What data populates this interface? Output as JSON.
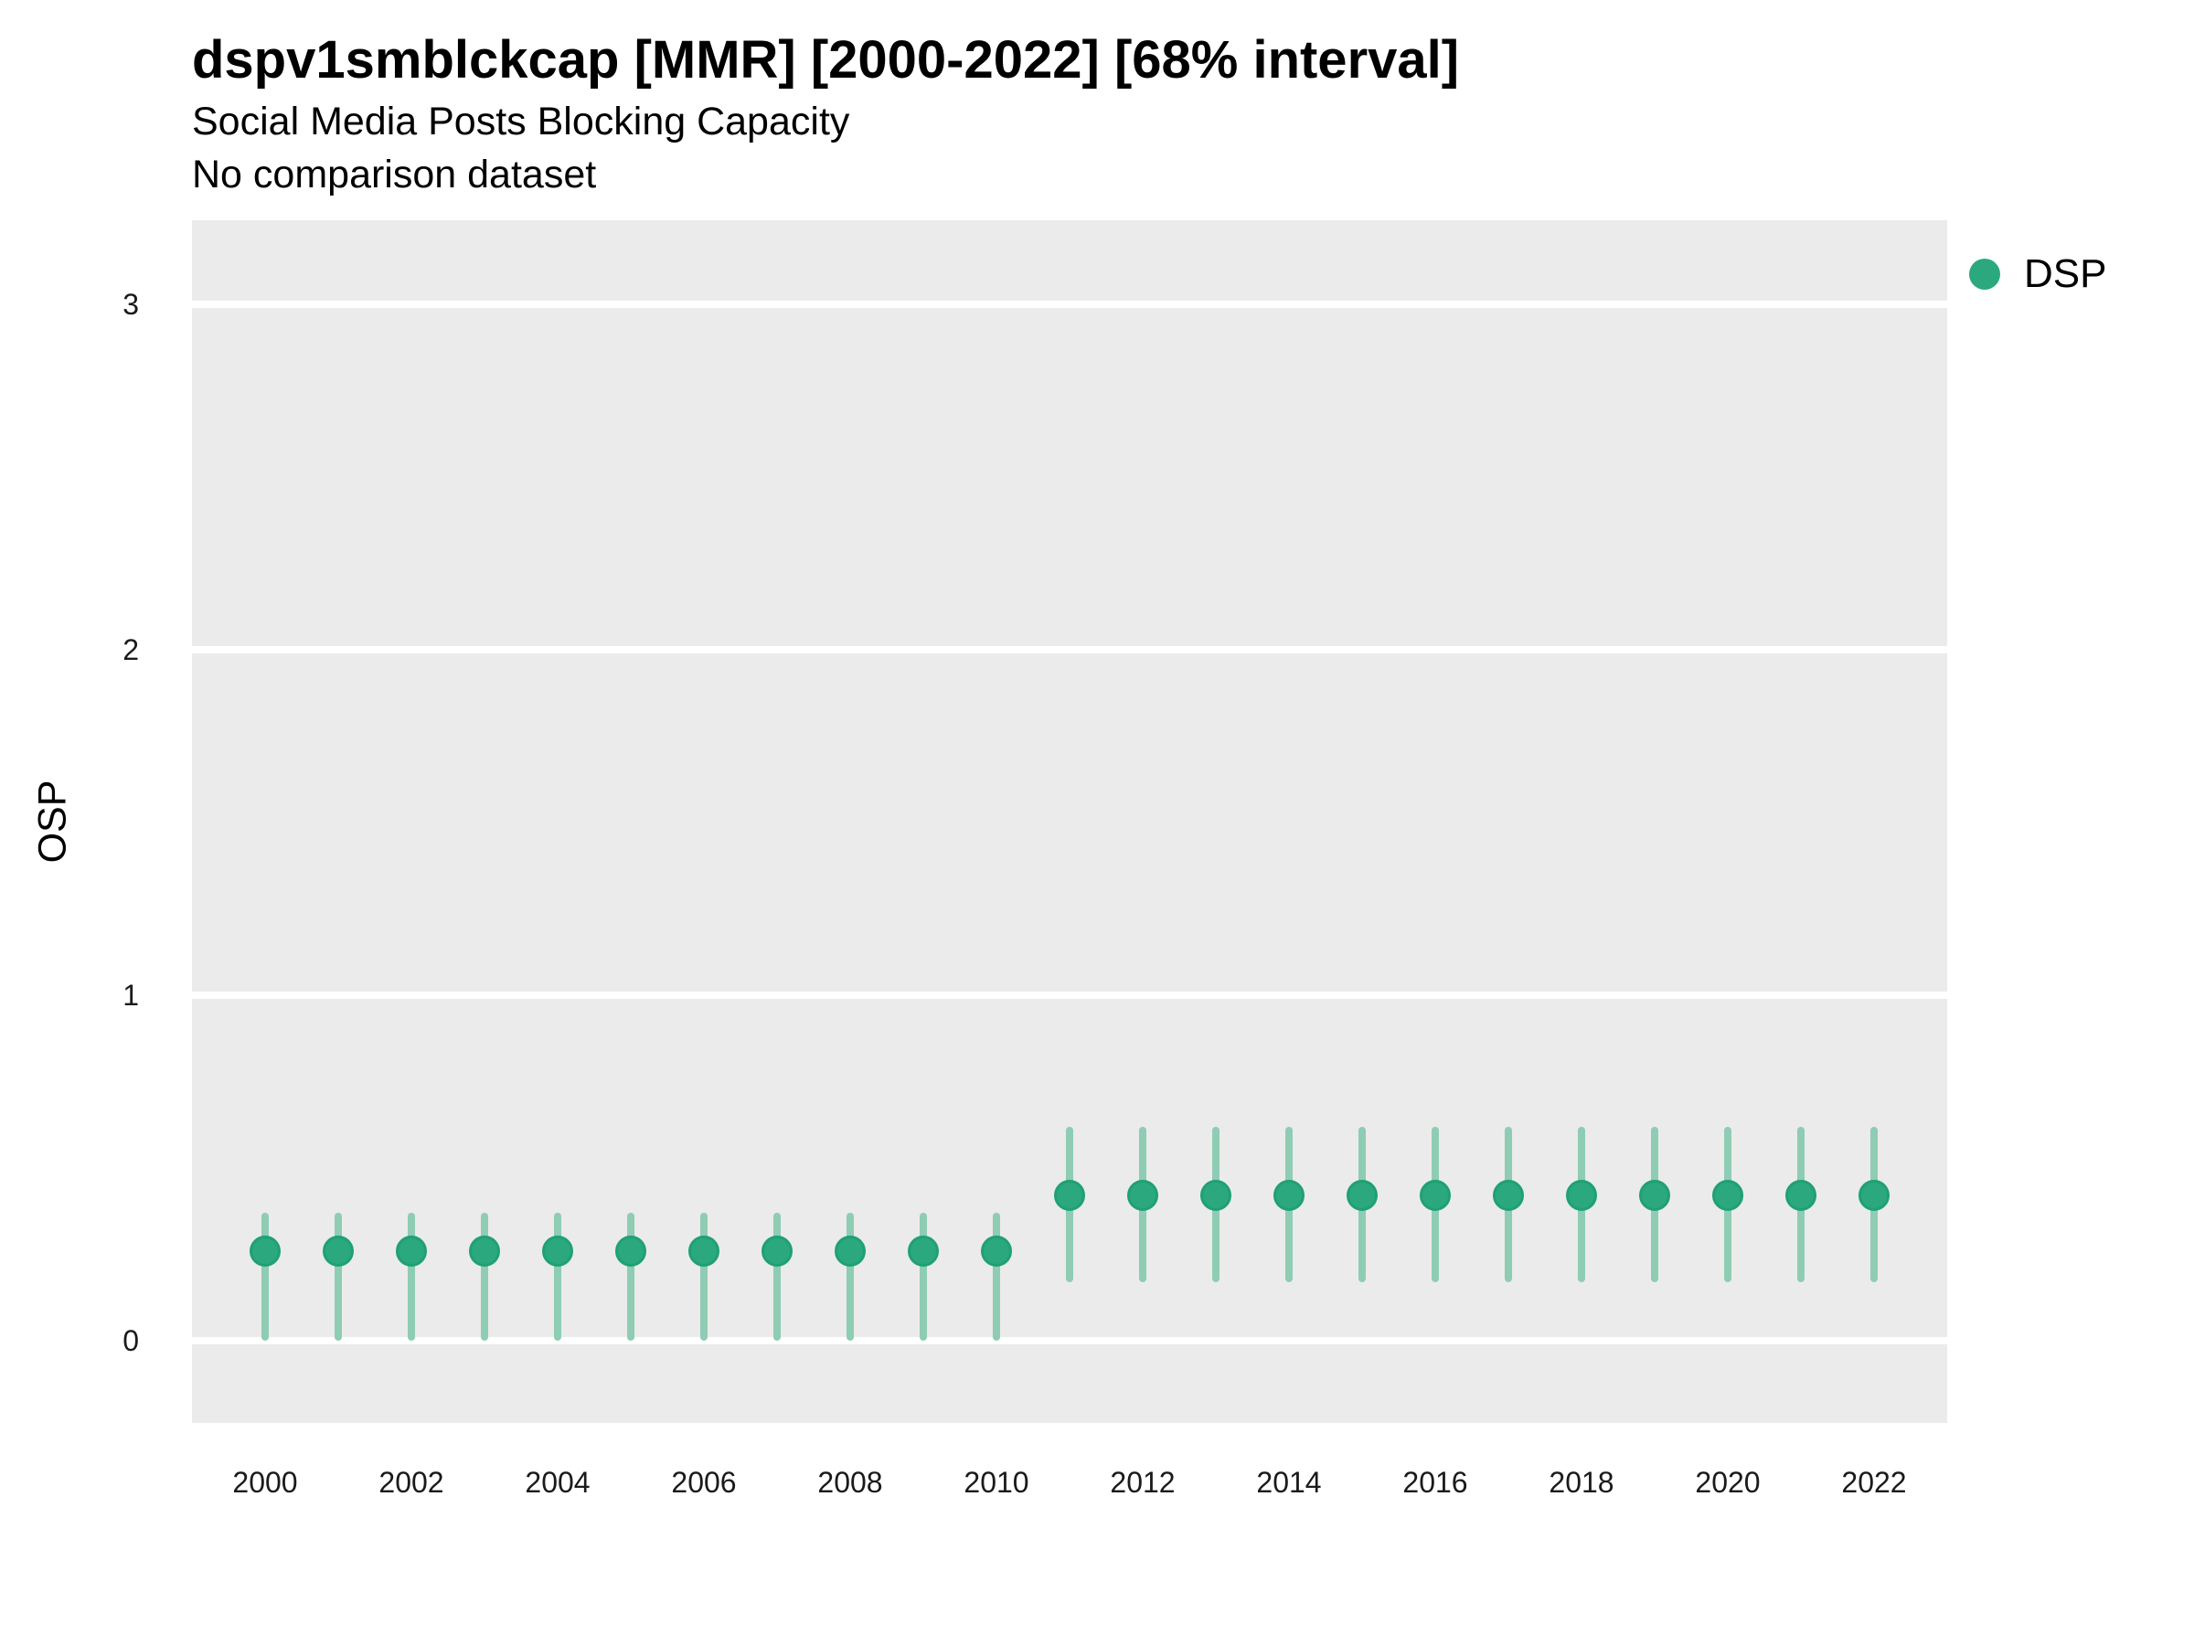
{
  "header": {
    "title": "dspv1smblckcap [MMR] [2000-2022] [68% interval]",
    "subtitle": "Social Media Posts Blocking Capacity",
    "note": "No comparison dataset"
  },
  "legend": {
    "position": "right",
    "items": [
      {
        "label": "DSP",
        "color": "#2BA87E"
      }
    ]
  },
  "colors": {
    "panel_background": "#EBEBEB",
    "gridline": "#FFFFFF",
    "interval": "#8FCCB4",
    "point_fill": "#2BA87E",
    "point_border": "#1FA075",
    "title_text": "#000000",
    "tick_text": "#1a1a1a"
  },
  "chart_data": {
    "type": "scatter",
    "subtype": "point-interval",
    "title": "dspv1smblckcap [MMR] [2000-2022] [68% interval]",
    "subtitle": "Social Media Posts Blocking Capacity",
    "note": "No comparison dataset",
    "interval_level": "68%",
    "xlabel": "",
    "ylabel": "OSP",
    "xlim": [
      1999,
      2023
    ],
    "ylim": [
      -0.24,
      3.24
    ],
    "x_ticks": [
      2000,
      2002,
      2004,
      2006,
      2008,
      2010,
      2012,
      2014,
      2016,
      2018,
      2020,
      2022
    ],
    "y_ticks": [
      0,
      1,
      2,
      3
    ],
    "grid": "major-horizontal-only",
    "legend_position": "right",
    "series": [
      {
        "name": "DSP",
        "color": "#2BA87E",
        "points": [
          {
            "x": 2000,
            "y": 0.26,
            "lower": 0.0,
            "upper": 0.37
          },
          {
            "x": 2001,
            "y": 0.26,
            "lower": 0.0,
            "upper": 0.37
          },
          {
            "x": 2002,
            "y": 0.26,
            "lower": 0.0,
            "upper": 0.37
          },
          {
            "x": 2003,
            "y": 0.26,
            "lower": 0.0,
            "upper": 0.37
          },
          {
            "x": 2004,
            "y": 0.26,
            "lower": 0.0,
            "upper": 0.37
          },
          {
            "x": 2005,
            "y": 0.26,
            "lower": 0.0,
            "upper": 0.37
          },
          {
            "x": 2006,
            "y": 0.26,
            "lower": 0.0,
            "upper": 0.37
          },
          {
            "x": 2007,
            "y": 0.26,
            "lower": 0.0,
            "upper": 0.37
          },
          {
            "x": 2008,
            "y": 0.26,
            "lower": 0.0,
            "upper": 0.37
          },
          {
            "x": 2009,
            "y": 0.26,
            "lower": 0.0,
            "upper": 0.37
          },
          {
            "x": 2010,
            "y": 0.26,
            "lower": 0.0,
            "upper": 0.37
          },
          {
            "x": 2011,
            "y": 0.42,
            "lower": 0.17,
            "upper": 0.62
          },
          {
            "x": 2012,
            "y": 0.42,
            "lower": 0.17,
            "upper": 0.62
          },
          {
            "x": 2013,
            "y": 0.42,
            "lower": 0.17,
            "upper": 0.62
          },
          {
            "x": 2014,
            "y": 0.42,
            "lower": 0.17,
            "upper": 0.62
          },
          {
            "x": 2015,
            "y": 0.42,
            "lower": 0.17,
            "upper": 0.62
          },
          {
            "x": 2016,
            "y": 0.42,
            "lower": 0.17,
            "upper": 0.62
          },
          {
            "x": 2017,
            "y": 0.42,
            "lower": 0.17,
            "upper": 0.62
          },
          {
            "x": 2018,
            "y": 0.42,
            "lower": 0.17,
            "upper": 0.62
          },
          {
            "x": 2019,
            "y": 0.42,
            "lower": 0.17,
            "upper": 0.62
          },
          {
            "x": 2020,
            "y": 0.42,
            "lower": 0.17,
            "upper": 0.62
          },
          {
            "x": 2021,
            "y": 0.42,
            "lower": 0.17,
            "upper": 0.62
          },
          {
            "x": 2022,
            "y": 0.42,
            "lower": 0.17,
            "upper": 0.62
          }
        ]
      }
    ]
  }
}
